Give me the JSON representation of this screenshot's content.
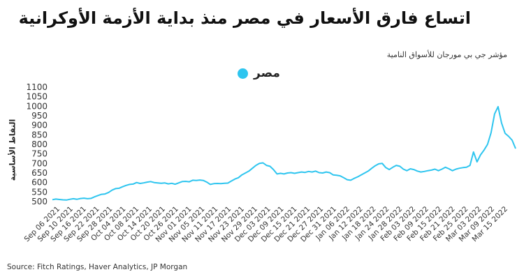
{
  "title": "اتساع فارق الأسعار في مصر منذ بداية الأزمة الأوكرانية",
  "subtitle": "مؤشر جي بي مورجان للأسواق النامية",
  "source": "Source: Fitch Ratings, Haver Analytics, JP Morgan",
  "colors": {
    "series": "#2ec5ef"
  },
  "chart_data": {
    "type": "line",
    "ylabel": "النقاط الأساسية",
    "ylim": [
      500,
      1100
    ],
    "yticks": [
      500,
      550,
      600,
      650,
      700,
      750,
      800,
      850,
      900,
      950,
      1000,
      1050,
      1100
    ],
    "xticks": [
      "Sep 06 2021",
      "Sep 10 2021",
      "Sep 16 2021",
      "Sep 22 2021",
      "Sep 28 2021",
      "Oct 04 2021",
      "Oct 08 2021",
      "Oct 14 2021",
      "Oct 20 2021",
      "Oct 26 2021",
      "Nov 01 2021",
      "Nov 05 2021",
      "Nov 11 2021",
      "Nov 17 2021",
      "Nov 23 2021",
      "Nov 29 2021",
      "Dec 03 2021",
      "Dec 09 2021",
      "Dec 15 2021",
      "Dec 21 2021",
      "Dec 27 2021",
      "Dec 31 2021",
      "Jan 06 2022",
      "Jan 12 2022",
      "Jan 18 2022",
      "Jan 24 2022",
      "Jan 28 2022",
      "Feb 03 2022",
      "Feb 09 2022",
      "Feb 15 2022",
      "Feb 21 2022",
      "Feb 25 2022",
      "Mar 03 2022",
      "Mar 09 2022",
      "Mar 15 2022"
    ],
    "grid": false,
    "legend_position": "top-center",
    "series": [
      {
        "name": "مصر",
        "values": [
          510,
          513,
          511,
          509,
          508,
          512,
          515,
          512,
          516,
          518,
          515,
          517,
          525,
          532,
          538,
          540,
          548,
          560,
          568,
          570,
          578,
          585,
          590,
          592,
          600,
          595,
          598,
          602,
          605,
          600,
          598,
          596,
          598,
          593,
          596,
          591,
          598,
          605,
          606,
          604,
          612,
          611,
          613,
          611,
          602,
          590,
          594,
          595,
          594,
          596,
          597,
          608,
          618,
          625,
          640,
          650,
          660,
          675,
          690,
          700,
          703,
          690,
          685,
          668,
          645,
          648,
          645,
          650,
          652,
          648,
          652,
          655,
          653,
          658,
          655,
          660,
          652,
          650,
          655,
          652,
          640,
          638,
          635,
          625,
          615,
          612,
          622,
          630,
          640,
          650,
          660,
          675,
          688,
          698,
          700,
          678,
          668,
          680,
          690,
          685,
          670,
          662,
          672,
          668,
          660,
          655,
          658,
          662,
          665,
          670,
          662,
          670,
          680,
          672,
          662,
          670,
          675,
          678,
          680,
          690,
          760,
          708,
          745,
          770,
          800,
          860,
          960,
          998,
          912,
          858,
          842,
          822,
          778
        ]
      }
    ]
  }
}
